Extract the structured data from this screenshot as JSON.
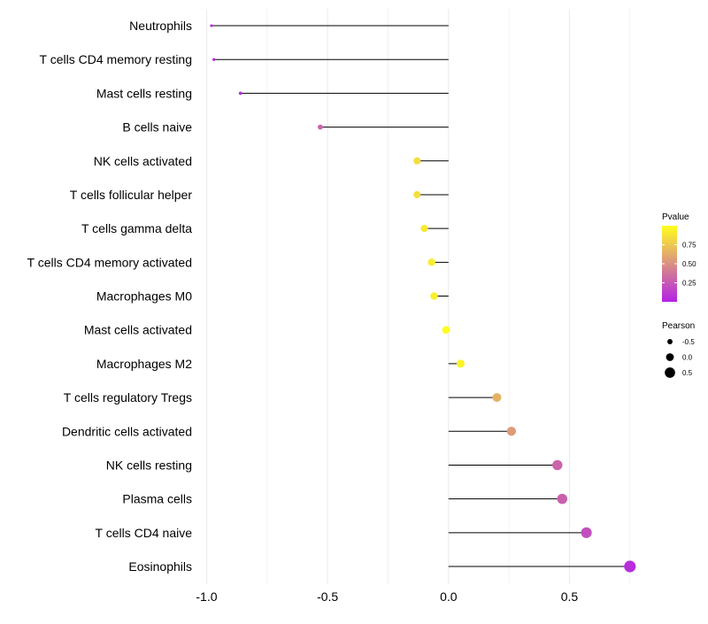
{
  "chart_data": {
    "type": "lollipop",
    "title": "",
    "xlabel": "",
    "ylabel": "",
    "xlim": [
      -1.02,
      0.78
    ],
    "x_ticks": [
      -1.0,
      -0.5,
      0.0,
      0.5
    ],
    "x_tick_labels": [
      "-1.0",
      "-0.5",
      "0.0",
      "0.5"
    ],
    "grid": true,
    "categories": [
      "Neutrophils",
      "T cells CD4 memory resting",
      "Mast cells resting",
      "B cells naive",
      "NK cells activated",
      "T cells follicular helper",
      "T cells gamma delta",
      "T cells CD4 memory activated",
      "Macrophages M0",
      "Mast cells activated",
      "Macrophages M2",
      "T cells regulatory  Tregs ",
      "Dendritic cells activated",
      "NK cells resting",
      "Plasma cells",
      "T cells CD4 naive",
      "Eosinophils"
    ],
    "pearson": [
      -0.98,
      -0.97,
      -0.86,
      -0.53,
      -0.13,
      -0.13,
      -0.1,
      -0.07,
      -0.06,
      -0.01,
      0.05,
      0.2,
      0.26,
      0.45,
      0.47,
      0.57,
      0.75
    ],
    "pvalue": [
      0.01,
      0.01,
      0.05,
      0.3,
      0.85,
      0.85,
      0.9,
      0.92,
      0.93,
      0.99,
      0.95,
      0.65,
      0.55,
      0.3,
      0.28,
      0.2,
      0.05
    ],
    "colorbar": {
      "title": "Pvalue",
      "low_color": "#b422e6",
      "high_color": "#ffff1e",
      "range": [
        0.0,
        1.0
      ],
      "ticks": [
        0.75,
        0.5,
        0.25
      ],
      "tick_labels": [
        "0.75",
        "0.50",
        "0.25"
      ]
    },
    "size_legend": {
      "title": "Pearson",
      "values": [
        -0.5,
        0.0,
        0.5
      ],
      "labels": [
        "-0.5",
        "0.0",
        "0.5"
      ],
      "color": "#000000"
    },
    "stem_color": "#000000",
    "grid_color": "#ebebeb"
  }
}
